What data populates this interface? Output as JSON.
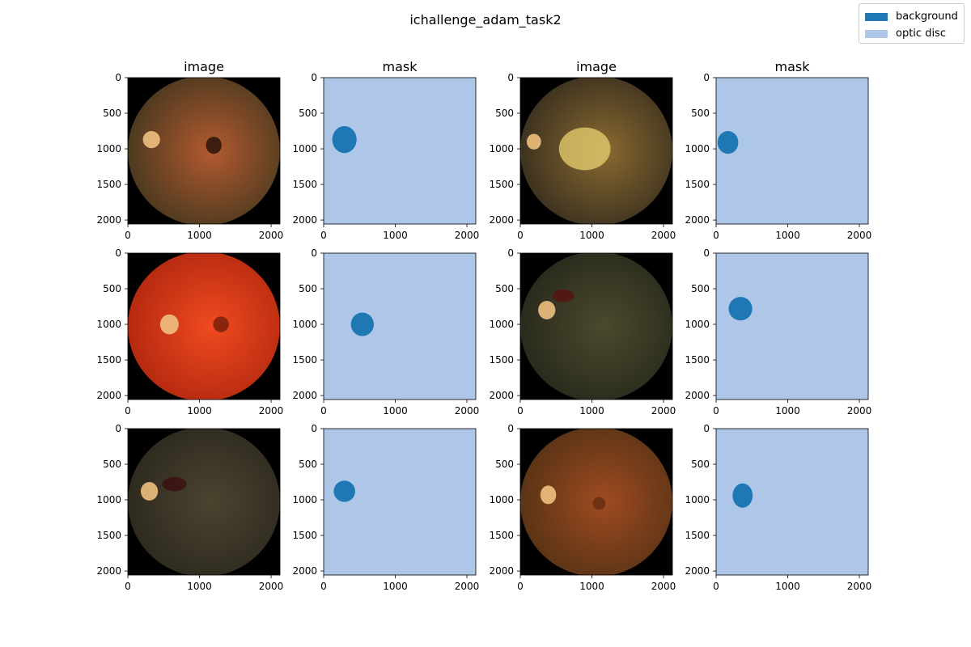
{
  "figure": {
    "title": "ichallenge_adam_task2"
  },
  "legend": {
    "items": [
      {
        "label": "background",
        "color": "#1f77b4"
      },
      {
        "label": "optic disc",
        "color": "#aec7e8"
      }
    ]
  },
  "chart_data": {
    "type": "heatmap",
    "title": "ichallenge_adam_task2",
    "image_size": [
      2124,
      2056
    ],
    "x_ticks": [
      0,
      1000,
      2000
    ],
    "y_ticks": [
      0,
      500,
      1000,
      1500,
      2000
    ],
    "xlim": [
      0,
      2124
    ],
    "ylim": [
      2056,
      0
    ],
    "classes": [
      {
        "name": "background",
        "color": "#1f77b4"
      },
      {
        "name": "optic disc",
        "color": "#aec7e8"
      }
    ],
    "panels": [
      {
        "row": 0,
        "col": 0,
        "kind": "image",
        "title": "image",
        "variant": 0,
        "disc_center": [
          330,
          870
        ],
        "disc_radius": [
          120,
          120
        ]
      },
      {
        "row": 0,
        "col": 1,
        "kind": "mask",
        "title": "mask",
        "disc_center": [
          290,
          870
        ],
        "disc_radius": [
          170,
          190
        ]
      },
      {
        "row": 0,
        "col": 2,
        "kind": "image",
        "title": "image",
        "variant": 1,
        "disc_center": [
          190,
          900
        ],
        "disc_radius": [
          100,
          110
        ]
      },
      {
        "row": 0,
        "col": 3,
        "kind": "mask",
        "title": "mask",
        "disc_center": [
          165,
          910
        ],
        "disc_radius": [
          145,
          160
        ]
      },
      {
        "row": 1,
        "col": 0,
        "kind": "image",
        "title": "",
        "variant": 2,
        "disc_center": [
          580,
          1000
        ],
        "disc_radius": [
          130,
          140
        ]
      },
      {
        "row": 1,
        "col": 1,
        "kind": "mask",
        "title": "",
        "disc_center": [
          540,
          1000
        ],
        "disc_radius": [
          160,
          165
        ]
      },
      {
        "row": 1,
        "col": 2,
        "kind": "image",
        "title": "",
        "variant": 3,
        "disc_center": [
          370,
          800
        ],
        "disc_radius": [
          120,
          130
        ]
      },
      {
        "row": 1,
        "col": 3,
        "kind": "mask",
        "title": "",
        "disc_center": [
          340,
          780
        ],
        "disc_radius": [
          165,
          165
        ]
      },
      {
        "row": 2,
        "col": 0,
        "kind": "image",
        "title": "",
        "variant": 4,
        "disc_center": [
          300,
          880
        ],
        "disc_radius": [
          120,
          130
        ]
      },
      {
        "row": 2,
        "col": 1,
        "kind": "mask",
        "title": "",
        "disc_center": [
          290,
          880
        ],
        "disc_radius": [
          150,
          150
        ]
      },
      {
        "row": 2,
        "col": 2,
        "kind": "image",
        "title": "",
        "variant": 5,
        "disc_center": [
          390,
          930
        ],
        "disc_radius": [
          110,
          130
        ]
      },
      {
        "row": 2,
        "col": 3,
        "kind": "mask",
        "title": "",
        "disc_center": [
          370,
          940
        ],
        "disc_radius": [
          140,
          170
        ]
      }
    ]
  }
}
